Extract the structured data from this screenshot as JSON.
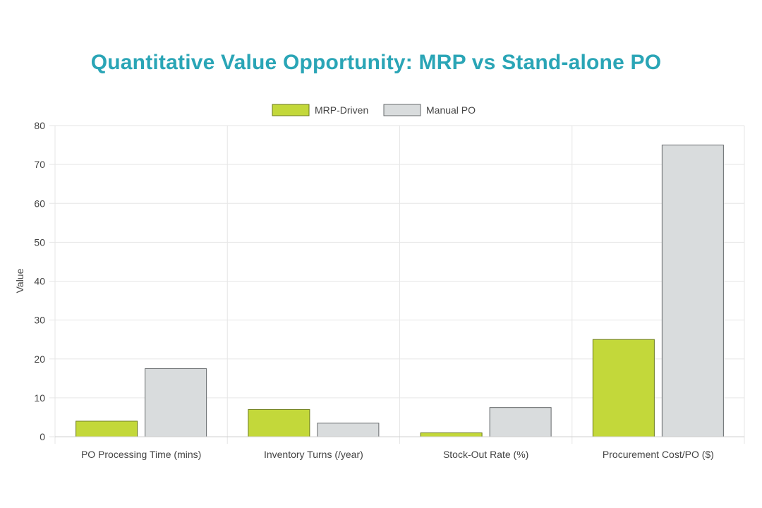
{
  "chart_data": {
    "type": "bar",
    "title": "Quantitative Value Opportunity: MRP vs Stand-alone PO",
    "xlabel": "",
    "ylabel": "Value",
    "ylim": [
      0,
      80
    ],
    "yticks": [
      0,
      10,
      20,
      30,
      40,
      50,
      60,
      70,
      80
    ],
    "categories": [
      "PO Processing Time (mins)",
      "Inventory Turns (/year)",
      "Stock-Out Rate (%)",
      "Procurement Cost/PO ($)"
    ],
    "series": [
      {
        "name": "MRP-Driven",
        "values": [
          4,
          7,
          1,
          25
        ],
        "color": "#c3d83a",
        "stroke": "#6b7a1a"
      },
      {
        "name": "Manual PO",
        "values": [
          17.5,
          3.5,
          7.5,
          75
        ],
        "color": "#d9dcdd",
        "stroke": "#666a6c"
      }
    ],
    "legend_position": "top-center",
    "grid": true
  }
}
